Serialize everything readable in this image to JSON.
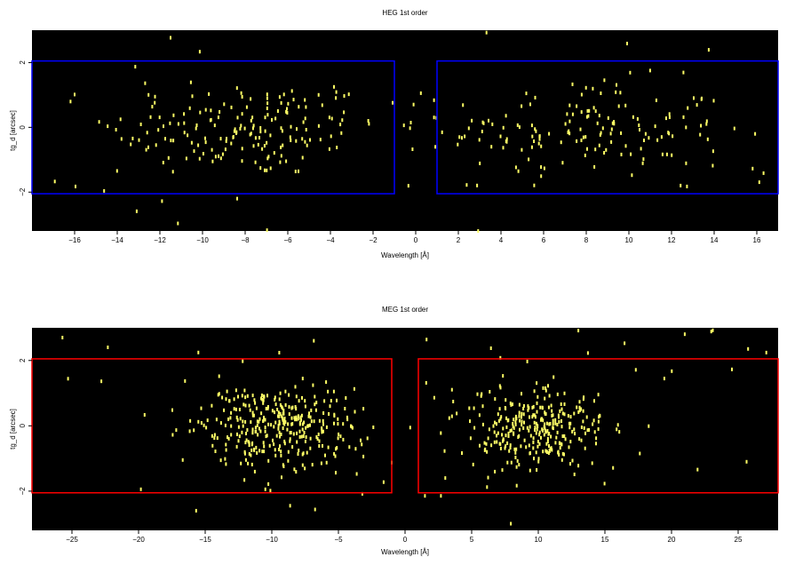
{
  "chart_data": [
    {
      "type": "heatmap",
      "title": "HEG 1st order",
      "xlabel": "Wavelength [Å]",
      "ylabel": "tg_d [arcsec]",
      "xlim": [
        -18,
        17
      ],
      "ylim": [
        -3.2,
        3.0
      ],
      "xticks": [
        -16,
        -14,
        -12,
        -10,
        -8,
        -6,
        -4,
        -2,
        0,
        2,
        4,
        6,
        8,
        10,
        12,
        14,
        16
      ],
      "xtick_labels": [
        "−16",
        "−14",
        "−12",
        "−10",
        "−8",
        "−6",
        "−4",
        "−2",
        "0",
        "2",
        "4",
        "6",
        "8",
        "10",
        "12",
        "14",
        "16"
      ],
      "yticks": [
        -2,
        0,
        2
      ],
      "ytick_labels": [
        "−2",
        "0",
        "2"
      ],
      "background_color": "#000000",
      "event_color": "#ffff66",
      "region_color": "#0000ff",
      "regions": [
        {
          "x": [
            -18,
            -1
          ],
          "y": [
            -2.05,
            2.05
          ]
        },
        {
          "x": [
            1,
            17
          ],
          "y": [
            -2.05,
            2.05
          ]
        }
      ],
      "events": {
        "clusters": [
          {
            "x_center": -8.0,
            "x_sigma": 3.2,
            "y_sigma": 0.75,
            "count": 170
          },
          {
            "x_center": 8.0,
            "x_sigma": 3.3,
            "y_sigma": 0.75,
            "count": 150
          }
        ],
        "background_count": 45
      }
    },
    {
      "type": "heatmap",
      "title": "MEG 1st order",
      "xlabel": "Wavelength [Å]",
      "ylabel": "tg_d [arcsec]",
      "xlim": [
        -28,
        28
      ],
      "ylim": [
        -3.2,
        3.0
      ],
      "xticks": [
        -25,
        -20,
        -15,
        -10,
        -5,
        0,
        5,
        10,
        15,
        20,
        25
      ],
      "xtick_labels": [
        "−25",
        "−20",
        "−15",
        "−10",
        "−5",
        "0",
        "5",
        "10",
        "15",
        "20",
        "25"
      ],
      "yticks": [
        -2,
        0,
        2
      ],
      "ytick_labels": [
        "−2",
        "0",
        "2"
      ],
      "background_color": "#000000",
      "event_color": "#ffff66",
      "region_color": "#ff0000",
      "regions": [
        {
          "x": [
            -28,
            -1
          ],
          "y": [
            -2.05,
            2.05
          ]
        },
        {
          "x": [
            1,
            28
          ],
          "y": [
            -2.05,
            2.05
          ]
        }
      ],
      "events": {
        "clusters": [
          {
            "x_center": -10.0,
            "x_sigma": 3.0,
            "y_sigma": 0.65,
            "count": 330
          },
          {
            "x_center": 9.5,
            "x_sigma": 2.8,
            "y_sigma": 0.65,
            "count": 300
          }
        ],
        "background_count": 55
      }
    }
  ]
}
